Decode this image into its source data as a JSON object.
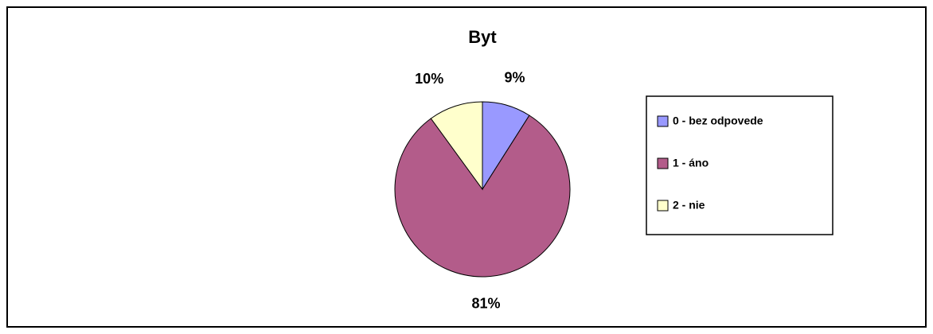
{
  "chart_data": {
    "type": "pie",
    "title": "Byt",
    "categories": [
      "0 - bez odpovede",
      "1 - áno",
      "2 - nie"
    ],
    "values": [
      9,
      81,
      10
    ],
    "value_labels": [
      "9%",
      "81%",
      "10%"
    ],
    "colors": [
      "#9999ff",
      "#b35c8a",
      "#ffffcc"
    ],
    "legend": "right"
  }
}
